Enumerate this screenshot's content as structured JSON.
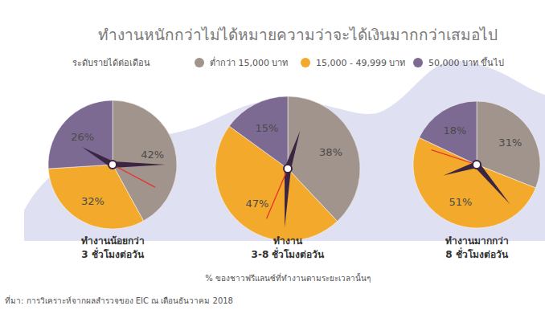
{
  "chart_data": {
    "type": "pie",
    "title": "ทำงานหนักกว่าไม่ได้หมายความว่าจะได้เงินมากกว่าเสมอไป",
    "legend_title": "ระดับรายได้ต่อเดือน",
    "categories": [
      "ต่ำกว่า 15,000 บาท",
      "15,000 - 49,999 บาท",
      "50,000 บาท ขึ้นไป"
    ],
    "colors": [
      "#a0948c",
      "#f2a92c",
      "#7c6a92"
    ],
    "series": [
      {
        "name": "ทำงานน้อยกว่า\n3 ชั่วโมงต่อวัน",
        "values": [
          42,
          32,
          26
        ],
        "value_labels": [
          "42%",
          "32%",
          "26%"
        ]
      },
      {
        "name": "ทำงาน\n3-8 ชั่วโมงต่อวัน",
        "values": [
          38,
          47,
          15
        ],
        "value_labels": [
          "38%",
          "47%",
          "15%"
        ]
      },
      {
        "name": "ทำงานมากกว่า\n8 ชั่วโมงต่อวัน",
        "values": [
          31,
          51,
          18
        ],
        "value_labels": [
          "31%",
          "51%",
          "18%"
        ]
      }
    ],
    "data_labels": true,
    "annotation": "% ของชาวฟรีแลนซ์ที่ทำงานตามระยะเวลานั้นๆ",
    "source": "ที่มา: การวิเคราะห์จากผลสำรวจของ EIC ณ เดือนธันวาคม 2018"
  }
}
